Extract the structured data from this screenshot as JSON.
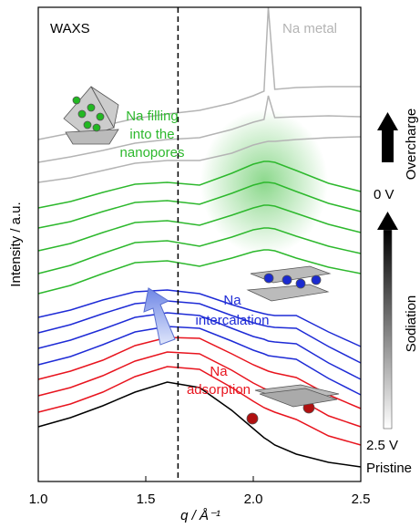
{
  "chart_data": {
    "type": "line",
    "x_label": "q / Å⁻¹",
    "y_label": "Intensity / a.u.",
    "xlim": [
      1.0,
      2.5
    ],
    "ylim": [
      0,
      520
    ],
    "xticks": [
      {
        "value": 1.0,
        "label": "1.0"
      },
      1.5,
      {
        "value": 2.0,
        "label": "2.0"
      },
      2.5
    ],
    "dashed_line_x": 1.65,
    "x": [
      1.0,
      1.15,
      1.3,
      1.45,
      1.6,
      1.75,
      1.9,
      2.0,
      2.05,
      2.07,
      2.1,
      2.2,
      2.35,
      2.5
    ],
    "series": [
      {
        "color": "#000000",
        "values": [
          60,
          70,
          83,
          98,
          109,
          103,
          78,
          58,
          48,
          45,
          40,
          30,
          21,
          16
        ]
      },
      {
        "color": "#e8141e",
        "values": [
          76,
          85,
          98,
          115,
          126,
          123,
          103,
          88,
          81,
          79,
          76,
          68,
          50,
          40
        ]
      },
      {
        "color": "#e8141e",
        "values": [
          94,
          103,
          116,
          132,
          142,
          140,
          122,
          108,
          102,
          100,
          98,
          92,
          72,
          60
        ]
      },
      {
        "color": "#e8141e",
        "values": [
          112,
          121,
          133,
          149,
          158,
          157,
          140,
          128,
          123,
          121,
          119,
          114,
          95,
          80
        ]
      },
      {
        "color": "#1e2bd6",
        "values": [
          128,
          137,
          150,
          164,
          170,
          168,
          154,
          144,
          140,
          138,
          137,
          134,
          113,
          95
        ]
      },
      {
        "color": "#1e2bd6",
        "values": [
          146,
          155,
          167,
          180,
          185,
          182,
          168,
          159,
          156,
          154,
          153,
          151,
          130,
          112
        ]
      },
      {
        "color": "#1e2bd6",
        "values": [
          163,
          172,
          184,
          195,
          198,
          195,
          182,
          174,
          171,
          170,
          169,
          168,
          148,
          130
        ]
      },
      {
        "color": "#1e2bd6",
        "values": [
          180,
          188,
          199,
          208,
          210,
          206,
          194,
          187,
          184,
          183,
          182,
          182,
          164,
          148
        ]
      },
      {
        "color": "#2db82d",
        "values": [
          206,
          215,
          228,
          240,
          242,
          236,
          245,
          252,
          254,
          254,
          253,
          245,
          235,
          228
        ]
      },
      {
        "color": "#2db82d",
        "values": [
          228,
          237,
          250,
          262,
          264,
          258,
          268,
          276,
          278,
          278,
          277,
          269,
          258,
          250
        ]
      },
      {
        "color": "#2db82d",
        "values": [
          253,
          261,
          273,
          284,
          286,
          281,
          292,
          300,
          303,
          303,
          302,
          294,
          282,
          273
        ]
      },
      {
        "color": "#2db82d",
        "values": [
          278,
          285,
          296,
          306,
          308,
          304,
          316,
          325,
          328,
          328,
          327,
          318,
          305,
          296
        ]
      },
      {
        "color": "#2db82d",
        "values": [
          300,
          307,
          317,
          326,
          328,
          325,
          338,
          348,
          351,
          351,
          350,
          341,
          327,
          318
        ]
      },
      {
        "color": "#b4b4b4",
        "values": [
          328,
          333,
          341,
          349,
          352,
          352,
          360,
          369,
          372,
          373,
          373,
          375,
          377,
          378
        ]
      },
      {
        "color": "#b4b4b4",
        "values": [
          350,
          356,
          363,
          371,
          375,
          377,
          386,
          394,
          397,
          423,
          399,
          400,
          401,
          400
        ]
      },
      {
        "color": "#b4b4b4",
        "values": [
          375,
          382,
          390,
          398,
          403,
          407,
          415,
          423,
          428,
          520,
          430,
          432,
          433,
          433
        ]
      }
    ],
    "annotations": [
      {
        "text": [
          "WAXS"
        ],
        "color": "#000000"
      },
      {
        "text": [
          "Na metal"
        ],
        "color": "#b4b4b4"
      },
      {
        "text": [
          "Na filling",
          "into the",
          "nanopores"
        ],
        "color": "#2db82d"
      },
      {
        "text": [
          "Na",
          "intercalation"
        ],
        "color": "#1e2bd6"
      },
      {
        "text": [
          "Na",
          "adsorption"
        ],
        "color": "#e8141e"
      },
      {
        "text": [
          "Overcharge"
        ],
        "color": "#000000"
      },
      {
        "text": [
          "0 V"
        ],
        "color": "#000000"
      },
      {
        "text": [
          "Sodiation"
        ],
        "color": "#000000"
      },
      {
        "text": [
          "2.5 V"
        ],
        "color": "#000000"
      },
      {
        "text": [
          "Pristine"
        ],
        "color": "#000000"
      }
    ]
  }
}
